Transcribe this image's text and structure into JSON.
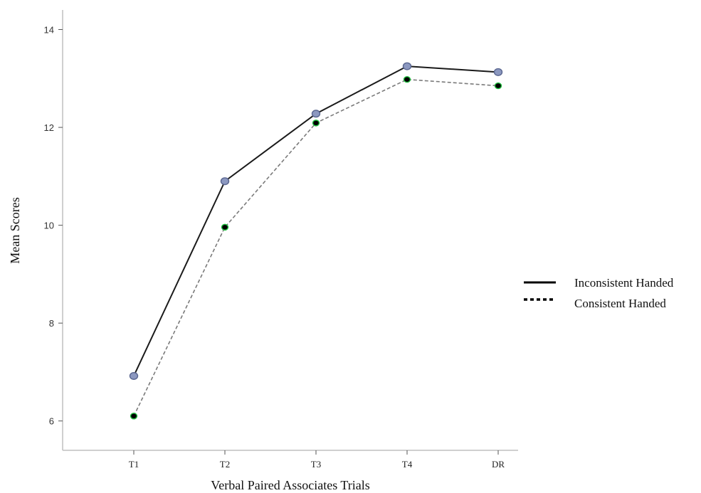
{
  "chart_data": {
    "type": "line",
    "title": "",
    "xlabel": "Verbal Paired Associates Trials",
    "ylabel": "Mean Scores",
    "categories": [
      "T1",
      "T2",
      "T3",
      "T4",
      "DR"
    ],
    "ylim": [
      5.4,
      14.4
    ],
    "yticks": [
      6,
      8,
      10,
      12,
      14
    ],
    "grid": false,
    "legend_position": "right",
    "series": [
      {
        "name": "Inconsistent Handed",
        "values": [
          6.92,
          10.9,
          12.28,
          13.25,
          13.13
        ],
        "line_style": "solid",
        "line_color": "#1a1a1a",
        "marker_fill": "#8c98c0",
        "marker_stroke": "#5a6690"
      },
      {
        "name": "Consistent Handed",
        "values": [
          6.1,
          9.96,
          12.09,
          12.98,
          12.85
        ],
        "line_style": "dashed",
        "line_color": "#7a7a7a",
        "marker_fill": "#000000",
        "marker_stroke": "#22c040"
      }
    ]
  }
}
